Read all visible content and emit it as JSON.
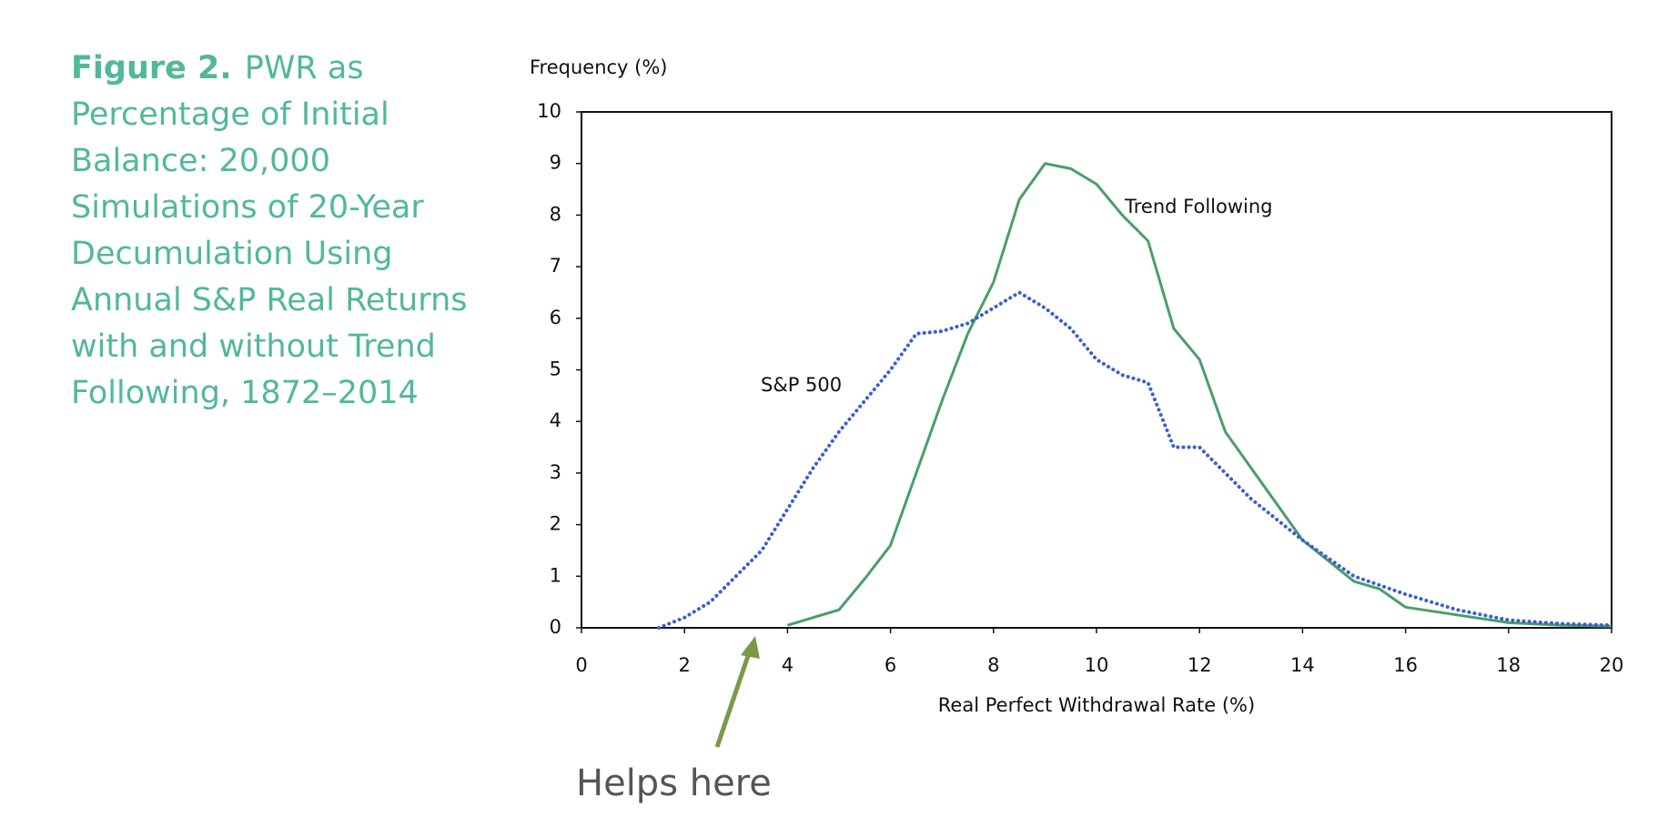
{
  "chart_data": {
    "type": "line",
    "figure_label": "Figure 2.",
    "title": "PWR as Percentage of Initial Balance: 20,000 Simulations of 20-Year Decumulation Using Annual S&P Real Returns with and without Trend Following, 1872–2014",
    "ylabel": "Frequency (%)",
    "xlabel": "Real Perfect Withdrawal Rate (%)",
    "xlim": [
      0,
      20
    ],
    "ylim": [
      0,
      10
    ],
    "xticks": [
      0,
      2,
      4,
      6,
      8,
      10,
      12,
      14,
      16,
      18,
      20
    ],
    "yticks": [
      0,
      1,
      2,
      3,
      4,
      5,
      6,
      7,
      8,
      9,
      10
    ],
    "grid": false,
    "series": [
      {
        "name": "Trend Following",
        "color": "#4a9e6a",
        "style": "solid",
        "x": [
          4,
          5,
          5.5,
          6,
          6.5,
          7,
          7.5,
          8,
          8.5,
          9,
          9.5,
          10,
          10.5,
          11,
          11.5,
          12,
          12.5,
          13,
          13.5,
          14,
          15,
          15.5,
          16,
          17,
          18,
          19,
          20
        ],
        "values": [
          0.05,
          0.35,
          0.95,
          1.6,
          3.0,
          4.4,
          5.7,
          6.7,
          8.3,
          9.0,
          8.9,
          8.6,
          8.0,
          7.5,
          5.8,
          5.2,
          3.8,
          3.1,
          2.4,
          1.7,
          0.9,
          0.75,
          0.4,
          0.25,
          0.1,
          0.05,
          0.03
        ]
      },
      {
        "name": "S&P 500",
        "color": "#3a5fcd",
        "style": "dotted",
        "x": [
          1.5,
          2,
          2.5,
          3,
          3.5,
          4,
          4.5,
          5,
          5.5,
          6,
          6.5,
          7,
          7.5,
          8,
          8.5,
          9,
          9.5,
          10,
          10.5,
          11,
          11.5,
          12,
          12.5,
          13,
          14,
          15,
          16,
          17,
          18,
          19,
          20
        ],
        "values": [
          0,
          0.2,
          0.5,
          1.0,
          1.5,
          2.3,
          3.1,
          3.8,
          4.4,
          5.0,
          5.7,
          5.75,
          5.9,
          6.2,
          6.5,
          6.2,
          5.8,
          5.2,
          4.9,
          4.75,
          3.5,
          3.5,
          3.0,
          2.5,
          1.7,
          1.0,
          0.65,
          0.35,
          0.15,
          0.08,
          0.05
        ]
      }
    ],
    "annotation": "Helps here"
  }
}
